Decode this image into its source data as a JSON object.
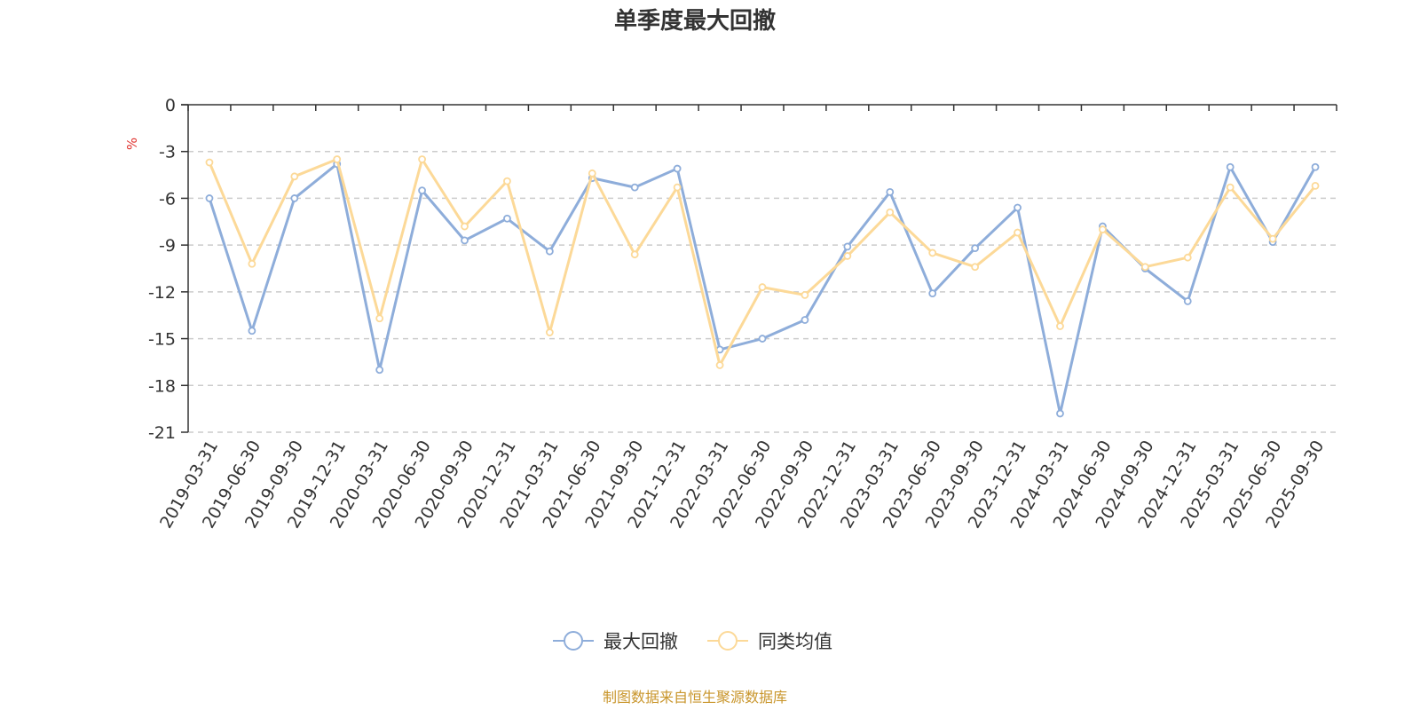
{
  "chart_data": {
    "type": "line",
    "title": "单季度最大回撤",
    "ylabel": "%",
    "ylim": [
      -21,
      0
    ],
    "yticks": [
      0,
      -3,
      -6,
      -9,
      -12,
      -15,
      -18,
      -21
    ],
    "grid": true,
    "legend_position": "bottom",
    "categories": [
      "2019-03-31",
      "2019-06-30",
      "2019-09-30",
      "2019-12-31",
      "2020-03-31",
      "2020-06-30",
      "2020-09-30",
      "2020-12-31",
      "2021-03-31",
      "2021-06-30",
      "2021-09-30",
      "2021-12-31",
      "2022-03-31",
      "2022-06-30",
      "2022-09-30",
      "2022-12-31",
      "2023-03-31",
      "2023-06-30",
      "2023-09-30",
      "2023-12-31",
      "2024-03-31",
      "2024-06-30",
      "2024-09-30",
      "2024-12-31",
      "2025-03-31",
      "2025-06-30",
      "2025-09-30"
    ],
    "series": [
      {
        "name": "最大回撤",
        "color": "#8eadda",
        "values": [
          -6.0,
          -14.5,
          -6.0,
          -3.8,
          -17.0,
          -5.5,
          -8.7,
          -7.3,
          -9.4,
          -4.7,
          -5.3,
          -4.1,
          -15.7,
          -15.0,
          -13.8,
          -9.1,
          -5.6,
          -12.1,
          -9.2,
          -6.6,
          -19.8,
          -7.8,
          -10.5,
          -12.6,
          -4.0,
          -8.8,
          -4.0
        ]
      },
      {
        "name": "同类均值",
        "color": "#fcd998",
        "values": [
          -3.7,
          -10.2,
          -4.6,
          -3.5,
          -13.7,
          -3.5,
          -7.8,
          -4.9,
          -14.6,
          -4.4,
          -9.6,
          -5.3,
          -16.7,
          -11.7,
          -12.2,
          -9.7,
          -6.9,
          -9.5,
          -10.4,
          -8.2,
          -14.2,
          -8.0,
          -10.4,
          -9.8,
          -5.3,
          -8.6,
          -5.2
        ]
      }
    ]
  },
  "footer": {
    "source_text": "制图数据来自恒生聚源数据库"
  }
}
